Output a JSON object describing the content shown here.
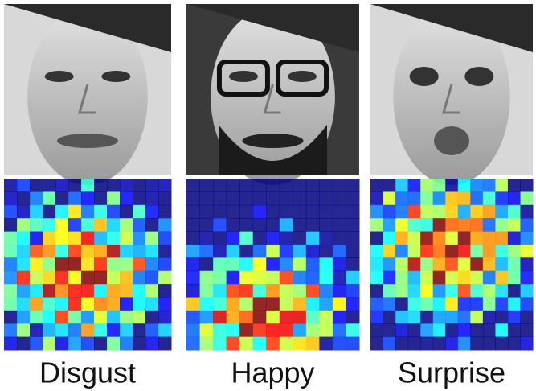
{
  "panels": [
    {
      "label": "Disgust"
    },
    {
      "label": "Happy"
    },
    {
      "label": "Surprise"
    }
  ]
}
